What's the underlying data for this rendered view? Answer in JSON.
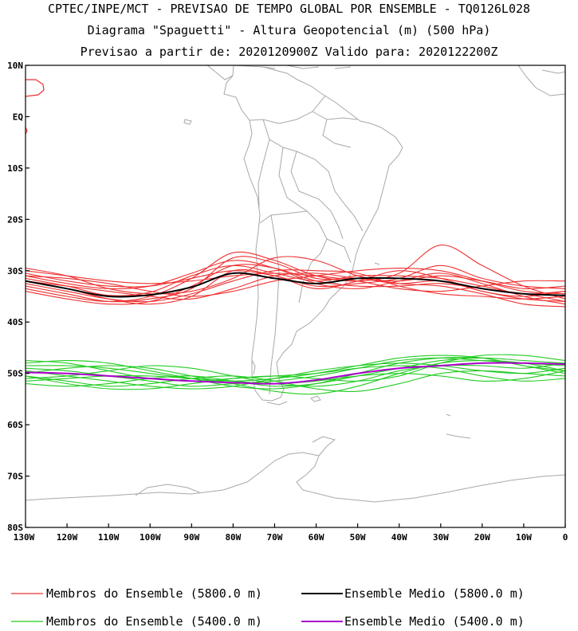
{
  "header": {
    "line1": "CPTEC/INPE/MCT - PREVISAO DE TEMPO GLOBAL POR ENSEMBLE - TQ0126L028",
    "line2": "Diagrama \"Spaguetti\" - Altura Geopotencial (m) (500 hPa)",
    "line3": "Previsao a partir de: 2020120900Z  Valido para: 2020122200Z"
  },
  "axes": {
    "lat_labels": [
      "10N",
      "EQ",
      "10S",
      "20S",
      "30S",
      "40S",
      "50S",
      "60S",
      "70S",
      "80S"
    ],
    "lon_labels": [
      "130W",
      "120W",
      "110W",
      "100W",
      "90W",
      "80W",
      "70W",
      "60W",
      "50W",
      "40W",
      "30W",
      "20W",
      "10W",
      "0"
    ]
  },
  "legend": {
    "red_members": "Membros do Ensemble (5800.0 m)",
    "black_mean": "Ensemble Medio (5800.0 m)",
    "green_members": "Membros do Ensemble (5400.0 m)",
    "purple_mean": "Ensemble Medio (5400.0 m)"
  },
  "colors": {
    "red_members": "#ee3030",
    "black_mean": "#000000",
    "green_members": "#22cc22",
    "purple_mean": "#aa00cc",
    "coastline": "#a8a8a8"
  },
  "chart_data": {
    "type": "line",
    "title": "Diagrama \"Spaguetti\" - Altura Geopotencial (m) (500 hPa)",
    "x": [
      -130,
      -120,
      -110,
      -100,
      -90,
      -80,
      -70,
      -60,
      -50,
      -40,
      -30,
      -20,
      -10,
      0
    ],
    "xlim": [
      -130,
      0
    ],
    "ylim": [
      -80,
      10
    ],
    "series": [
      {
        "name": "Ensemble Medio (5800.0 m)",
        "values": [
          -32.0,
          -33.5,
          -35.0,
          -34.7,
          -33.2,
          -30.5,
          -31.5,
          -32.5,
          -31.5,
          -31.5,
          -32.0,
          -33.5,
          -34.5,
          -34.8
        ]
      },
      {
        "name": "Ensemble Medio (5400.0 m)",
        "values": [
          -49.8,
          -50.0,
          -50.5,
          -51.0,
          -51.5,
          -51.8,
          -52.0,
          -51.3,
          -50.0,
          -49.0,
          -48.5,
          -48.0,
          -48.0,
          -48.2
        ]
      }
    ],
    "members_5800": [
      [
        -31.5,
        -33.0,
        -34.8,
        -34.2,
        -31.0,
        -29.0,
        -30.5,
        -32.0,
        -31.0,
        -31.0,
        -31.5,
        -33.0,
        -34.5,
        -34.0
      ],
      [
        -33.0,
        -34.5,
        -36.0,
        -35.5,
        -33.5,
        -27.5,
        -28.5,
        -31.5,
        -31.5,
        -32.5,
        -32.0,
        -34.0,
        -35.5,
        -36.0
      ],
      [
        -30.5,
        -32.0,
        -33.0,
        -33.0,
        -31.5,
        -30.0,
        -31.0,
        -33.0,
        -32.5,
        -31.5,
        -29.0,
        -31.5,
        -33.0,
        -33.5
      ],
      [
        -32.5,
        -34.0,
        -35.5,
        -36.0,
        -34.5,
        -32.0,
        -30.0,
        -30.0,
        -30.5,
        -33.0,
        -34.5,
        -35.0,
        -35.5,
        -35.0
      ],
      [
        -31.0,
        -31.5,
        -32.5,
        -34.0,
        -35.0,
        -34.0,
        -32.0,
        -31.0,
        -30.0,
        -29.5,
        -30.0,
        -32.0,
        -34.0,
        -34.5
      ],
      [
        -34.0,
        -35.5,
        -36.5,
        -36.0,
        -33.0,
        -29.0,
        -29.5,
        -32.0,
        -33.0,
        -33.0,
        -32.5,
        -33.5,
        -34.5,
        -36.0
      ],
      [
        -30.0,
        -31.0,
        -32.0,
        -32.5,
        -32.0,
        -31.0,
        -30.5,
        -31.0,
        -32.0,
        -33.5,
        -34.0,
        -33.0,
        -32.0,
        -32.0
      ],
      [
        -32.0,
        -33.0,
        -34.0,
        -35.0,
        -35.5,
        -33.5,
        -31.0,
        -30.5,
        -31.5,
        -32.0,
        -31.0,
        -32.0,
        -33.5,
        -33.0
      ],
      [
        -33.5,
        -35.0,
        -36.0,
        -35.0,
        -31.5,
        -26.5,
        -28.0,
        -31.0,
        -32.0,
        -30.5,
        -25.0,
        -29.0,
        -33.0,
        -35.5
      ],
      [
        -29.5,
        -31.0,
        -33.5,
        -34.5,
        -34.0,
        -31.5,
        -27.5,
        -28.0,
        -31.0,
        -32.5,
        -33.0,
        -34.5,
        -36.5,
        -37.0
      ],
      [
        -31.0,
        -32.5,
        -33.5,
        -33.0,
        -30.5,
        -28.0,
        -29.5,
        -32.5,
        -33.5,
        -32.0,
        -30.5,
        -32.5,
        -35.0,
        -36.5
      ],
      [
        -32.0,
        -33.5,
        -35.5,
        -36.5,
        -35.0,
        -30.0,
        -31.0,
        -33.5,
        -32.0,
        -30.0,
        -31.5,
        -34.0,
        -35.0,
        -34.0
      ]
    ],
    "members_5400": [
      [
        -49.0,
        -49.5,
        -50.5,
        -51.5,
        -52.5,
        -52.0,
        -51.5,
        -50.5,
        -49.0,
        -47.5,
        -47.0,
        -47.5,
        -48.0,
        -48.5
      ],
      [
        -50.5,
        -51.5,
        -52.5,
        -52.0,
        -51.0,
        -50.5,
        -51.5,
        -53.0,
        -53.5,
        -52.0,
        -50.0,
        -49.5,
        -50.0,
        -50.5
      ],
      [
        -48.0,
        -47.5,
        -48.0,
        -49.5,
        -51.0,
        -52.5,
        -53.0,
        -52.0,
        -50.0,
        -48.0,
        -47.0,
        -47.0,
        -48.5,
        -49.5
      ],
      [
        -51.0,
        -50.5,
        -49.5,
        -48.5,
        -49.0,
        -50.5,
        -52.0,
        -52.5,
        -51.5,
        -49.5,
        -48.5,
        -48.5,
        -49.0,
        -48.0
      ],
      [
        -47.5,
        -48.0,
        -49.5,
        -51.0,
        -51.5,
        -51.0,
        -50.5,
        -50.0,
        -49.0,
        -48.5,
        -49.0,
        -50.5,
        -51.5,
        -51.0
      ],
      [
        -52.0,
        -52.5,
        -52.0,
        -51.0,
        -50.5,
        -51.5,
        -52.5,
        -52.0,
        -50.5,
        -49.0,
        -47.5,
        -47.0,
        -47.5,
        -48.0
      ],
      [
        -49.5,
        -50.5,
        -51.5,
        -52.5,
        -53.0,
        -52.5,
        -51.0,
        -49.5,
        -48.5,
        -48.0,
        -48.5,
        -49.5,
        -50.0,
        -49.0
      ],
      [
        -50.0,
        -49.0,
        -48.5,
        -49.0,
        -50.5,
        -52.0,
        -53.5,
        -54.0,
        -52.5,
        -50.0,
        -48.0,
        -47.5,
        -48.0,
        -49.5
      ],
      [
        -48.5,
        -48.5,
        -49.0,
        -50.0,
        -51.0,
        -51.5,
        -51.0,
        -50.0,
        -48.5,
        -47.0,
        -46.5,
        -47.0,
        -48.5,
        -50.0
      ],
      [
        -51.5,
        -51.0,
        -50.5,
        -50.5,
        -51.0,
        -51.5,
        -52.0,
        -51.5,
        -50.5,
        -50.0,
        -50.5,
        -51.5,
        -51.0,
        -49.5
      ],
      [
        -50.5,
        -52.0,
        -53.0,
        -53.0,
        -52.0,
        -51.0,
        -50.5,
        -51.0,
        -51.5,
        -50.5,
        -48.0,
        -46.5,
        -46.5,
        -47.5
      ]
    ]
  }
}
